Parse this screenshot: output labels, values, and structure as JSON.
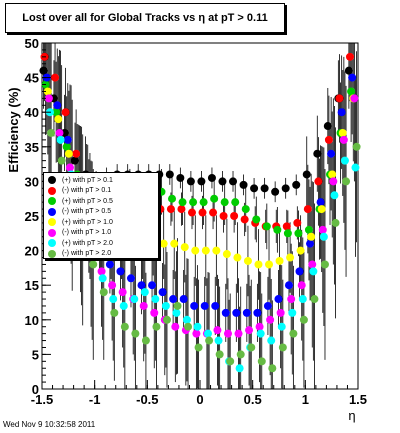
{
  "chart_data": {
    "type": "scatter",
    "title": "Lost over all for Global Tracks vs    η at pT > 0.11",
    "xlabel": "η",
    "ylabel": "Efficiency (%)",
    "xlim": [
      -1.5,
      1.5
    ],
    "ylim": [
      0,
      50
    ],
    "xticks": [
      -1.5,
      -1,
      -0.5,
      0,
      0.5,
      1,
      1.5
    ],
    "xtick_labels": [
      "-1.5",
      "-1",
      "-0.5",
      "0",
      "0.5",
      "1",
      "1.5"
    ],
    "yticks": [
      0,
      5,
      10,
      15,
      20,
      25,
      30,
      35,
      40,
      45,
      50
    ],
    "ytick_labels": [
      "0",
      "5",
      "10",
      "15",
      "20",
      "25",
      "30",
      "35",
      "40",
      "45",
      "50"
    ],
    "grid": false,
    "legend_position": "left-middle",
    "series": [
      {
        "name": "(+) with pT > 0.1",
        "color": "#000000",
        "x": [
          -1.45,
          -1.35,
          -1.25,
          -1.15,
          -1.05,
          -0.95,
          -0.85,
          -0.75,
          -0.65,
          -0.55,
          -0.45,
          -0.35,
          -0.25,
          -0.15,
          -0.05,
          0.05,
          0.15,
          0.25,
          0.35,
          0.45,
          0.55,
          0.65,
          0.75,
          0.85,
          0.95,
          1.05,
          1.15,
          1.25,
          1.35,
          1.45
        ],
        "y": [
          46,
          42,
          37,
          33,
          31,
          30,
          30.5,
          31,
          31,
          31,
          31,
          31,
          31,
          30.5,
          30,
          30,
          30.5,
          30,
          30,
          29.5,
          29,
          29,
          28.5,
          29,
          29.5,
          31,
          34,
          38,
          42,
          46
        ]
      },
      {
        "name": "(-) with pT > 0.1",
        "color": "#ff0000",
        "x": [
          -1.45,
          -1.35,
          -1.25,
          -1.15,
          -1.05,
          -0.95,
          -0.85,
          -0.75,
          -0.65,
          -0.55,
          -0.45,
          -0.35,
          -0.25,
          -0.15,
          -0.05,
          0.05,
          0.15,
          0.25,
          0.35,
          0.45,
          0.55,
          0.65,
          0.75,
          0.85,
          0.95,
          1.05,
          1.15,
          1.25,
          1.35,
          1.45
        ],
        "y": [
          48,
          45,
          40,
          34,
          29,
          27,
          26.5,
          27,
          27,
          27,
          26.5,
          26,
          26,
          26,
          25.5,
          25.5,
          25.5,
          25,
          25,
          24.5,
          24,
          23.5,
          23.5,
          23.5,
          24,
          26,
          30,
          36,
          42,
          48
        ]
      },
      {
        "name": "(+) with pT > 0.5",
        "color": "#00cc00",
        "x": [
          -1.45,
          -1.35,
          -1.25,
          -1.15,
          -1.05,
          -0.95,
          -0.85,
          -0.75,
          -0.65,
          -0.55,
          -0.45,
          -0.35,
          -0.25,
          -0.15,
          -0.05,
          0.05,
          0.15,
          0.25,
          0.35,
          0.45,
          0.55,
          0.65,
          0.75,
          0.85,
          0.95,
          1.05,
          1.15,
          1.25,
          1.35,
          1.45
        ],
        "y": [
          44,
          40,
          35,
          31,
          28,
          27,
          27.5,
          28,
          28.5,
          28,
          28,
          28.5,
          27.5,
          27,
          27,
          27,
          27.5,
          27,
          27,
          26,
          24.5,
          23.5,
          23,
          22.5,
          22.5,
          23,
          26,
          31,
          37,
          43
        ]
      },
      {
        "name": "(-) with pT > 0.5",
        "color": "#0000ff",
        "x": [
          -1.45,
          -1.35,
          -1.25,
          -1.15,
          -1.05,
          -0.95,
          -0.85,
          -0.75,
          -0.65,
          -0.55,
          -0.45,
          -0.35,
          -0.25,
          -0.15,
          -0.05,
          0.05,
          0.15,
          0.25,
          0.35,
          0.45,
          0.55,
          0.65,
          0.75,
          0.85,
          0.95,
          1.05,
          1.15,
          1.25,
          1.35,
          1.45
        ],
        "y": [
          45,
          41,
          36,
          30,
          25,
          21,
          18,
          17,
          16,
          15,
          15,
          14,
          13,
          13,
          12,
          12,
          12,
          11,
          11,
          11,
          11,
          12,
          13,
          15,
          17,
          21,
          27,
          34,
          40,
          45
        ]
      },
      {
        "name": "(+) with pT > 1.0",
        "color": "#ffff00",
        "x": [
          -1.45,
          -1.35,
          -1.25,
          -1.15,
          -1.05,
          -0.95,
          -0.85,
          -0.75,
          -0.65,
          -0.55,
          -0.45,
          -0.35,
          -0.25,
          -0.15,
          -0.05,
          0.05,
          0.15,
          0.25,
          0.35,
          0.45,
          0.55,
          0.65,
          0.75,
          0.85,
          0.95,
          1.05,
          1.15,
          1.25,
          1.35,
          1.45
        ],
        "y": [
          43,
          39,
          34,
          29,
          25,
          22,
          21,
          21,
          21,
          21,
          21.5,
          21,
          21,
          20.5,
          20,
          20,
          20,
          19.5,
          19,
          18.5,
          18,
          18,
          18.5,
          19,
          20,
          22,
          26,
          31,
          37,
          42
        ]
      },
      {
        "name": "(-) with pT > 1.0",
        "color": "#ff00ff",
        "x": [
          -1.45,
          -1.35,
          -1.25,
          -1.15,
          -1.05,
          -0.95,
          -0.85,
          -0.75,
          -0.65,
          -0.55,
          -0.45,
          -0.35,
          -0.25,
          -0.15,
          -0.05,
          0.05,
          0.15,
          0.25,
          0.35,
          0.45,
          0.55,
          0.65,
          0.75,
          0.85,
          0.95,
          1.05,
          1.15,
          1.25,
          1.35,
          1.45
        ],
        "y": [
          42,
          37,
          32,
          26,
          21,
          17,
          15,
          14,
          13,
          12,
          11,
          10,
          9,
          8.5,
          8,
          8,
          8.5,
          8,
          8,
          8.5,
          9,
          10,
          11,
          13,
          15,
          18,
          23,
          30,
          36,
          42
        ]
      },
      {
        "name": "(+) with pT > 2.0",
        "color": "#00ffff",
        "x": [
          -1.45,
          -1.35,
          -1.25,
          -1.15,
          -1.05,
          -0.95,
          -0.85,
          -0.75,
          -0.65,
          -0.55,
          -0.45,
          -0.35,
          -0.25,
          -0.15,
          -0.05,
          0.05,
          0.15,
          0.25,
          0.35,
          0.45,
          0.55,
          0.65,
          0.75,
          0.85,
          0.95,
          1.05,
          1.15,
          1.25,
          1.35,
          1.45
        ],
        "y": [
          40,
          36,
          31,
          25,
          20,
          16,
          13,
          12,
          13,
          14,
          13,
          12,
          11,
          10,
          9,
          8,
          7,
          4,
          3,
          6,
          8,
          7,
          9,
          11,
          13,
          17,
          22,
          28,
          33,
          32
        ]
      },
      {
        "name": "(-) with pT > 2.0",
        "color": "#66bb44",
        "x": [
          -1.45,
          -1.35,
          -1.25,
          -1.15,
          -1.05,
          -0.95,
          -0.85,
          -0.75,
          -0.65,
          -0.55,
          -0.45,
          -0.35,
          -0.25,
          -0.15,
          -0.05,
          0.05,
          0.15,
          0.25,
          0.35,
          0.45,
          0.55,
          0.65,
          0.75,
          0.85,
          0.95,
          1.05,
          1.15,
          1.25,
          1.35,
          1.45
        ],
        "y": [
          37,
          33,
          28,
          23,
          18,
          14,
          11,
          9,
          8,
          7,
          9,
          10,
          12,
          9,
          6,
          7,
          5,
          4,
          5,
          6,
          4,
          3,
          6,
          8,
          10,
          13,
          18,
          24,
          30,
          35
        ]
      }
    ]
  },
  "footer": {
    "date_stamp": "Wed Nov  9 10:32:58 2011"
  }
}
